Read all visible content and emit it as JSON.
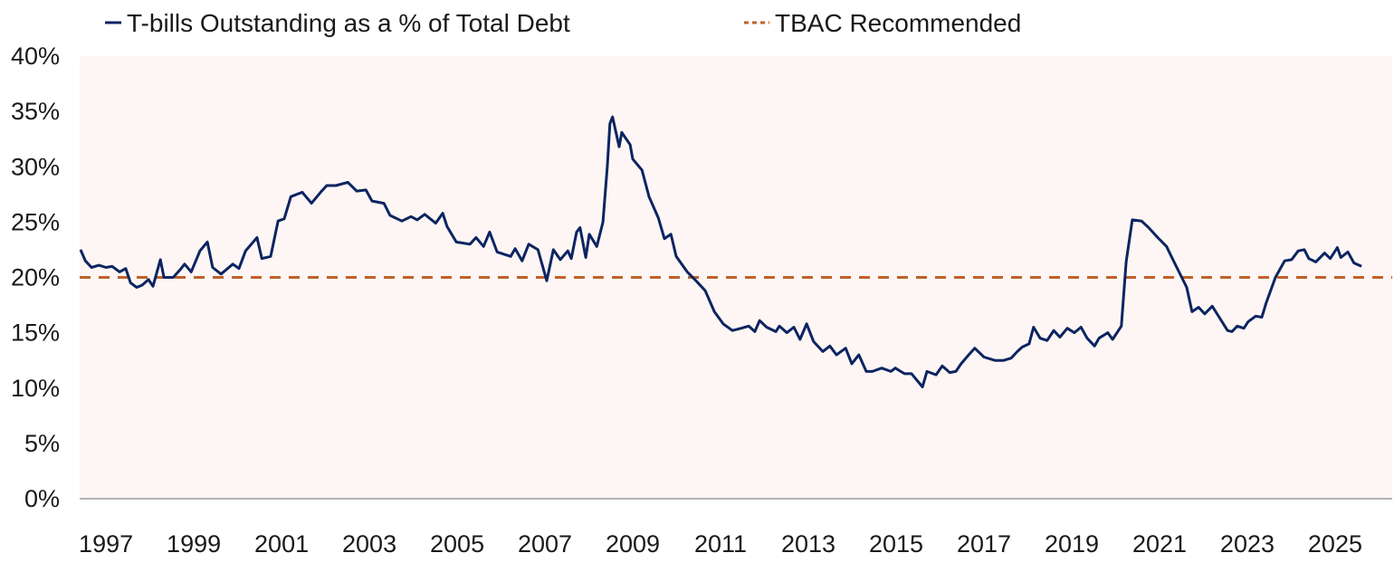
{
  "chart_data": {
    "type": "line",
    "title": "",
    "xlabel": "",
    "ylabel": "",
    "xlim": [
      1996.4,
      2026.3
    ],
    "ylim": [
      0,
      40
    ],
    "grid": false,
    "legend_placement": "top",
    "x_ticks": [
      "1997",
      "1999",
      "2001",
      "2003",
      "2005",
      "2007",
      "2009",
      "2011",
      "2013",
      "2015",
      "2017",
      "2019",
      "2021",
      "2023",
      "2025"
    ],
    "y_ticks": [
      "0%",
      "5%",
      "10%",
      "15%",
      "20%",
      "25%",
      "30%",
      "35%",
      "40%"
    ],
    "plot_background": "#fdf6f4",
    "series": [
      {
        "name": "T-bills Outstanding as a % of Total Debt",
        "color": "#0c2461",
        "style": "solid",
        "x": [
          1996.42,
          1996.53,
          1996.67,
          1996.84,
          1997.0,
          1997.14,
          1997.31,
          1997.45,
          1997.56,
          1997.7,
          1997.82,
          1997.97,
          1998.07,
          1998.24,
          1998.32,
          1998.53,
          1998.69,
          1998.79,
          1998.94,
          1999.14,
          1999.31,
          1999.43,
          1999.62,
          1999.89,
          2000.03,
          2000.18,
          2000.44,
          2000.55,
          2000.75,
          2000.92,
          2001.06,
          2001.21,
          2001.47,
          2001.68,
          2001.89,
          2002.03,
          2002.24,
          2002.51,
          2002.71,
          2002.92,
          2003.06,
          2003.33,
          2003.47,
          2003.74,
          2003.95,
          2004.09,
          2004.26,
          2004.51,
          2004.67,
          2004.77,
          2004.98,
          2005.29,
          2005.43,
          2005.6,
          2005.74,
          2005.91,
          2006.22,
          2006.32,
          2006.48,
          2006.63,
          2006.84,
          2007.04,
          2007.19,
          2007.35,
          2007.52,
          2007.6,
          2007.72,
          2007.8,
          2007.93,
          2008.01,
          2008.18,
          2008.32,
          2008.42,
          2008.48,
          2008.54,
          2008.69,
          2008.75,
          2008.94,
          2009.0,
          2009.21,
          2009.37,
          2009.58,
          2009.72,
          2009.87,
          2009.99,
          2010.24,
          2010.44,
          2010.65,
          2010.86,
          2011.06,
          2011.27,
          2011.47,
          2011.64,
          2011.78,
          2011.89,
          2012.05,
          2012.26,
          2012.34,
          2012.51,
          2012.67,
          2012.81,
          2012.96,
          2013.12,
          2013.33,
          2013.49,
          2013.64,
          2013.85,
          2013.99,
          2014.15,
          2014.32,
          2014.46,
          2014.67,
          2014.88,
          2014.98,
          2015.19,
          2015.35,
          2015.6,
          2015.7,
          2015.91,
          2016.05,
          2016.22,
          2016.36,
          2016.48,
          2016.63,
          2016.79,
          2017.0,
          2017.25,
          2017.45,
          2017.62,
          2017.76,
          2017.87,
          2018.03,
          2018.13,
          2018.28,
          2018.44,
          2018.59,
          2018.73,
          2018.9,
          2019.06,
          2019.21,
          2019.35,
          2019.52,
          2019.62,
          2019.82,
          2019.93,
          2020.13,
          2020.24,
          2020.38,
          2020.59,
          2020.75,
          2020.96,
          2021.16,
          2021.33,
          2021.62,
          2021.74,
          2021.89,
          2022.03,
          2022.2,
          2022.36,
          2022.55,
          2022.65,
          2022.77,
          2022.92,
          2023.02,
          2023.19,
          2023.33,
          2023.43,
          2023.64,
          2023.85,
          2024.01,
          2024.16,
          2024.3,
          2024.4,
          2024.56,
          2024.76,
          2024.89,
          2025.05,
          2025.13,
          2025.29,
          2025.43,
          2025.6
        ],
        "values": [
          22.5,
          21.5,
          20.9,
          21.1,
          20.9,
          21.0,
          20.5,
          20.8,
          19.5,
          19.1,
          19.3,
          19.8,
          19.2,
          21.6,
          20.0,
          20.0,
          20.7,
          21.2,
          20.5,
          22.4,
          23.2,
          20.9,
          20.3,
          21.2,
          20.8,
          22.4,
          23.6,
          21.7,
          21.9,
          25.1,
          25.3,
          27.3,
          27.7,
          26.7,
          27.7,
          28.3,
          28.3,
          28.6,
          27.8,
          27.9,
          26.9,
          26.7,
          25.6,
          25.1,
          25.5,
          25.2,
          25.7,
          24.9,
          25.8,
          24.6,
          23.2,
          23.0,
          23.6,
          22.8,
          24.1,
          22.3,
          21.9,
          22.6,
          21.5,
          23.0,
          22.5,
          19.7,
          22.5,
          21.6,
          22.4,
          21.7,
          24.1,
          24.5,
          21.8,
          23.9,
          22.8,
          25.0,
          30.0,
          33.9,
          34.5,
          31.8,
          33.1,
          32.0,
          30.7,
          29.7,
          27.3,
          25.4,
          23.5,
          23.9,
          21.9,
          20.5,
          19.7,
          18.8,
          16.9,
          15.8,
          15.2,
          15.4,
          15.6,
          15.1,
          16.1,
          15.5,
          15.1,
          15.6,
          15.0,
          15.5,
          14.4,
          15.8,
          14.2,
          13.3,
          13.8,
          13.0,
          13.6,
          12.2,
          13.0,
          11.5,
          11.5,
          11.8,
          11.5,
          11.8,
          11.3,
          11.3,
          10.1,
          11.5,
          11.2,
          12.0,
          11.4,
          11.5,
          12.2,
          12.9,
          13.6,
          12.8,
          12.5,
          12.5,
          12.7,
          13.3,
          13.7,
          14.0,
          15.5,
          14.5,
          14.3,
          15.2,
          14.6,
          15.4,
          15.0,
          15.5,
          14.5,
          13.8,
          14.5,
          15.0,
          14.4,
          15.6,
          21.4,
          25.2,
          25.1,
          24.5,
          23.6,
          22.8,
          21.4,
          19.1,
          16.9,
          17.3,
          16.7,
          17.4,
          16.4,
          15.2,
          15.1,
          15.6,
          15.4,
          16.0,
          16.5,
          16.4,
          17.7,
          20.0,
          21.5,
          21.6,
          22.4,
          22.5,
          21.7,
          21.4,
          22.2,
          21.7,
          22.7,
          21.8,
          22.3,
          21.3,
          21.0
        ]
      },
      {
        "name": "TBAC Recommended",
        "color": "#c0622a",
        "style": "dashed",
        "constant": 20
      }
    ]
  }
}
